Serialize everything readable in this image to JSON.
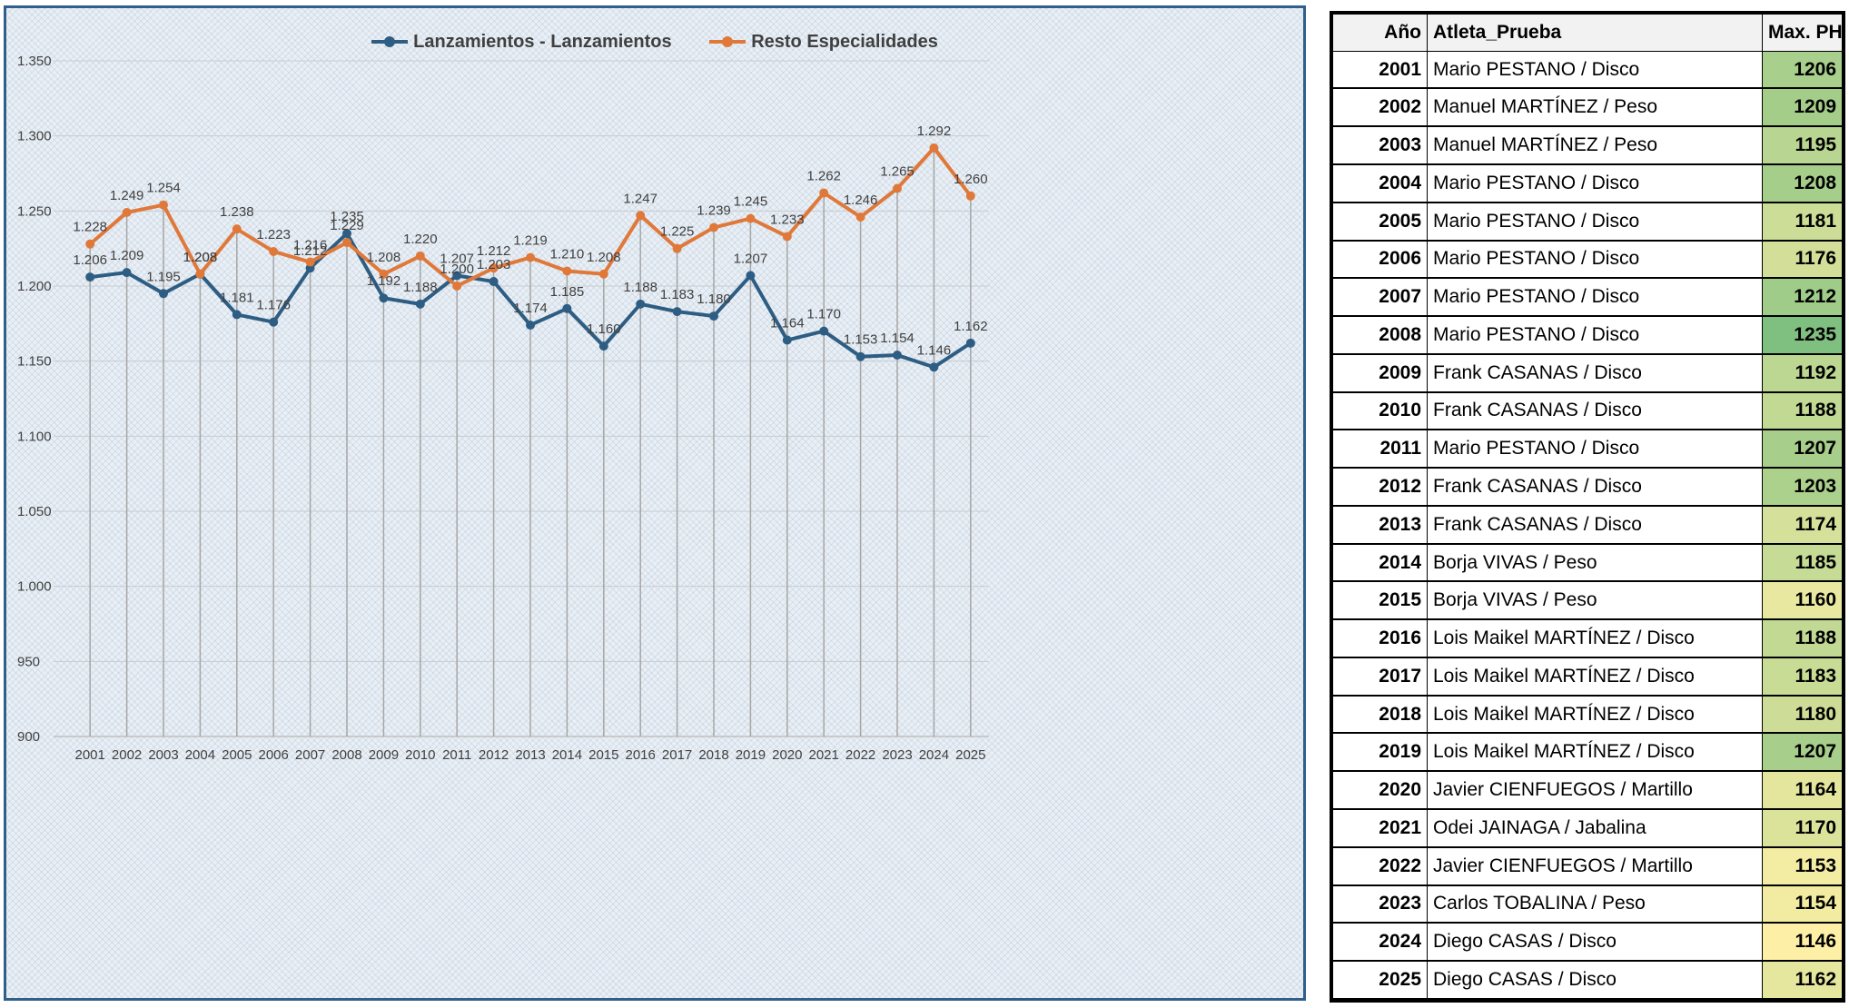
{
  "chart_data": {
    "type": "line",
    "title": "",
    "xlabel": "",
    "ylabel": "",
    "ylim": [
      900,
      1350
    ],
    "yticks": [
      "900",
      "950",
      "1.000",
      "1.050",
      "1.100",
      "1.150",
      "1.200",
      "1.250",
      "1.300",
      "1.350"
    ],
    "ytick_values": [
      900,
      950,
      1000,
      1050,
      1100,
      1150,
      1200,
      1250,
      1300,
      1350
    ],
    "categories": [
      "2001",
      "2002",
      "2003",
      "2004",
      "2005",
      "2006",
      "2007",
      "2008",
      "2009",
      "2010",
      "2011",
      "2012",
      "2013",
      "2014",
      "2015",
      "2016",
      "2017",
      "2018",
      "2019",
      "2020",
      "2021",
      "2022",
      "2023",
      "2024",
      "2025"
    ],
    "legend_position": "top-center",
    "series": [
      {
        "name": "Lanzamientos - Lanzamientos",
        "color": "#2e5d83",
        "values": [
          1206,
          1209,
          1195,
          1208,
          1181,
          1176,
          1212,
          1235,
          1192,
          1188,
          1207,
          1203,
          1174,
          1185,
          1160,
          1188,
          1183,
          1180,
          1207,
          1164,
          1170,
          1153,
          1154,
          1146,
          1162
        ],
        "labels": [
          "1.206",
          "1.209",
          "1.195",
          "1.208",
          "1.181",
          "1.176",
          "1.212",
          "1.235",
          "1.192",
          "1.188",
          "1.207",
          "1.203",
          "1.174",
          "1.185",
          "1.160",
          "1.188",
          "1.183",
          "1.180",
          "1.207",
          "1.164",
          "1.170",
          "1.153",
          "1.154",
          "1.146",
          "1.162"
        ]
      },
      {
        "name": "Resto Especialidades",
        "color": "#e0783a",
        "values": [
          1228,
          1249,
          1254,
          1208,
          1238,
          1223,
          1216,
          1229,
          1208,
          1220,
          1200,
          1212,
          1219,
          1210,
          1208,
          1247,
          1225,
          1239,
          1245,
          1233,
          1262,
          1246,
          1265,
          1292,
          1260
        ],
        "labels": [
          "1.228",
          "1.249",
          "1.254",
          "1.208",
          "1.238",
          "1.223",
          "1.216",
          "1.229",
          "1.208",
          "1.220",
          "1.200",
          "1.212",
          "1.219",
          "1.210",
          "1.208",
          "1.247",
          "1.225",
          "1.239",
          "1.245",
          "1.233",
          "1.262",
          "1.246",
          "1.265",
          "1.292",
          "1.260"
        ]
      }
    ]
  },
  "table": {
    "headers": {
      "year": "Año",
      "athlete": "Atleta_Prueba",
      "ph": "Max. PH"
    },
    "rows": [
      {
        "year": "2001",
        "athlete": "Mario PESTANO / Disco",
        "ph": "1206"
      },
      {
        "year": "2002",
        "athlete": "Manuel MARTÍNEZ / Peso",
        "ph": "1209"
      },
      {
        "year": "2003",
        "athlete": "Manuel MARTÍNEZ / Peso",
        "ph": "1195"
      },
      {
        "year": "2004",
        "athlete": "Mario PESTANO / Disco",
        "ph": "1208"
      },
      {
        "year": "2005",
        "athlete": "Mario PESTANO / Disco",
        "ph": "1181"
      },
      {
        "year": "2006",
        "athlete": "Mario PESTANO / Disco",
        "ph": "1176"
      },
      {
        "year": "2007",
        "athlete": "Mario PESTANO / Disco",
        "ph": "1212"
      },
      {
        "year": "2008",
        "athlete": "Mario PESTANO / Disco",
        "ph": "1235"
      },
      {
        "year": "2009",
        "athlete": "Frank CASANAS / Disco",
        "ph": "1192"
      },
      {
        "year": "2010",
        "athlete": "Frank CASANAS / Disco",
        "ph": "1188"
      },
      {
        "year": "2011",
        "athlete": "Mario PESTANO / Disco",
        "ph": "1207"
      },
      {
        "year": "2012",
        "athlete": "Frank CASANAS / Disco",
        "ph": "1203"
      },
      {
        "year": "2013",
        "athlete": "Frank CASANAS / Disco",
        "ph": "1174"
      },
      {
        "year": "2014",
        "athlete": "Borja VIVAS / Peso",
        "ph": "1185"
      },
      {
        "year": "2015",
        "athlete": "Borja VIVAS / Peso",
        "ph": "1160"
      },
      {
        "year": "2016",
        "athlete": "Lois Maikel MARTÍNEZ / Disco",
        "ph": "1188"
      },
      {
        "year": "2017",
        "athlete": "Lois Maikel MARTÍNEZ / Disco",
        "ph": "1183"
      },
      {
        "year": "2018",
        "athlete": "Lois Maikel MARTÍNEZ / Disco",
        "ph": "1180"
      },
      {
        "year": "2019",
        "athlete": "Lois Maikel MARTÍNEZ / Disco",
        "ph": "1207"
      },
      {
        "year": "2020",
        "athlete": "Javier CIENFUEGOS / Martillo",
        "ph": "1164"
      },
      {
        "year": "2021",
        "athlete": "Odei JAINAGA / Jabalina",
        "ph": "1170"
      },
      {
        "year": "2022",
        "athlete": "Javier CIENFUEGOS / Martillo",
        "ph": "1153"
      },
      {
        "year": "2023",
        "athlete": "Carlos TOBALINA / Peso",
        "ph": "1154"
      },
      {
        "year": "2024",
        "athlete": "Diego CASAS / Disco",
        "ph": "1146"
      },
      {
        "year": "2025",
        "athlete": "Diego CASAS / Disco",
        "ph": "1162"
      }
    ],
    "heat_colors": {
      "low": "#fdf0a6",
      "high": "#7fbf7f"
    }
  }
}
